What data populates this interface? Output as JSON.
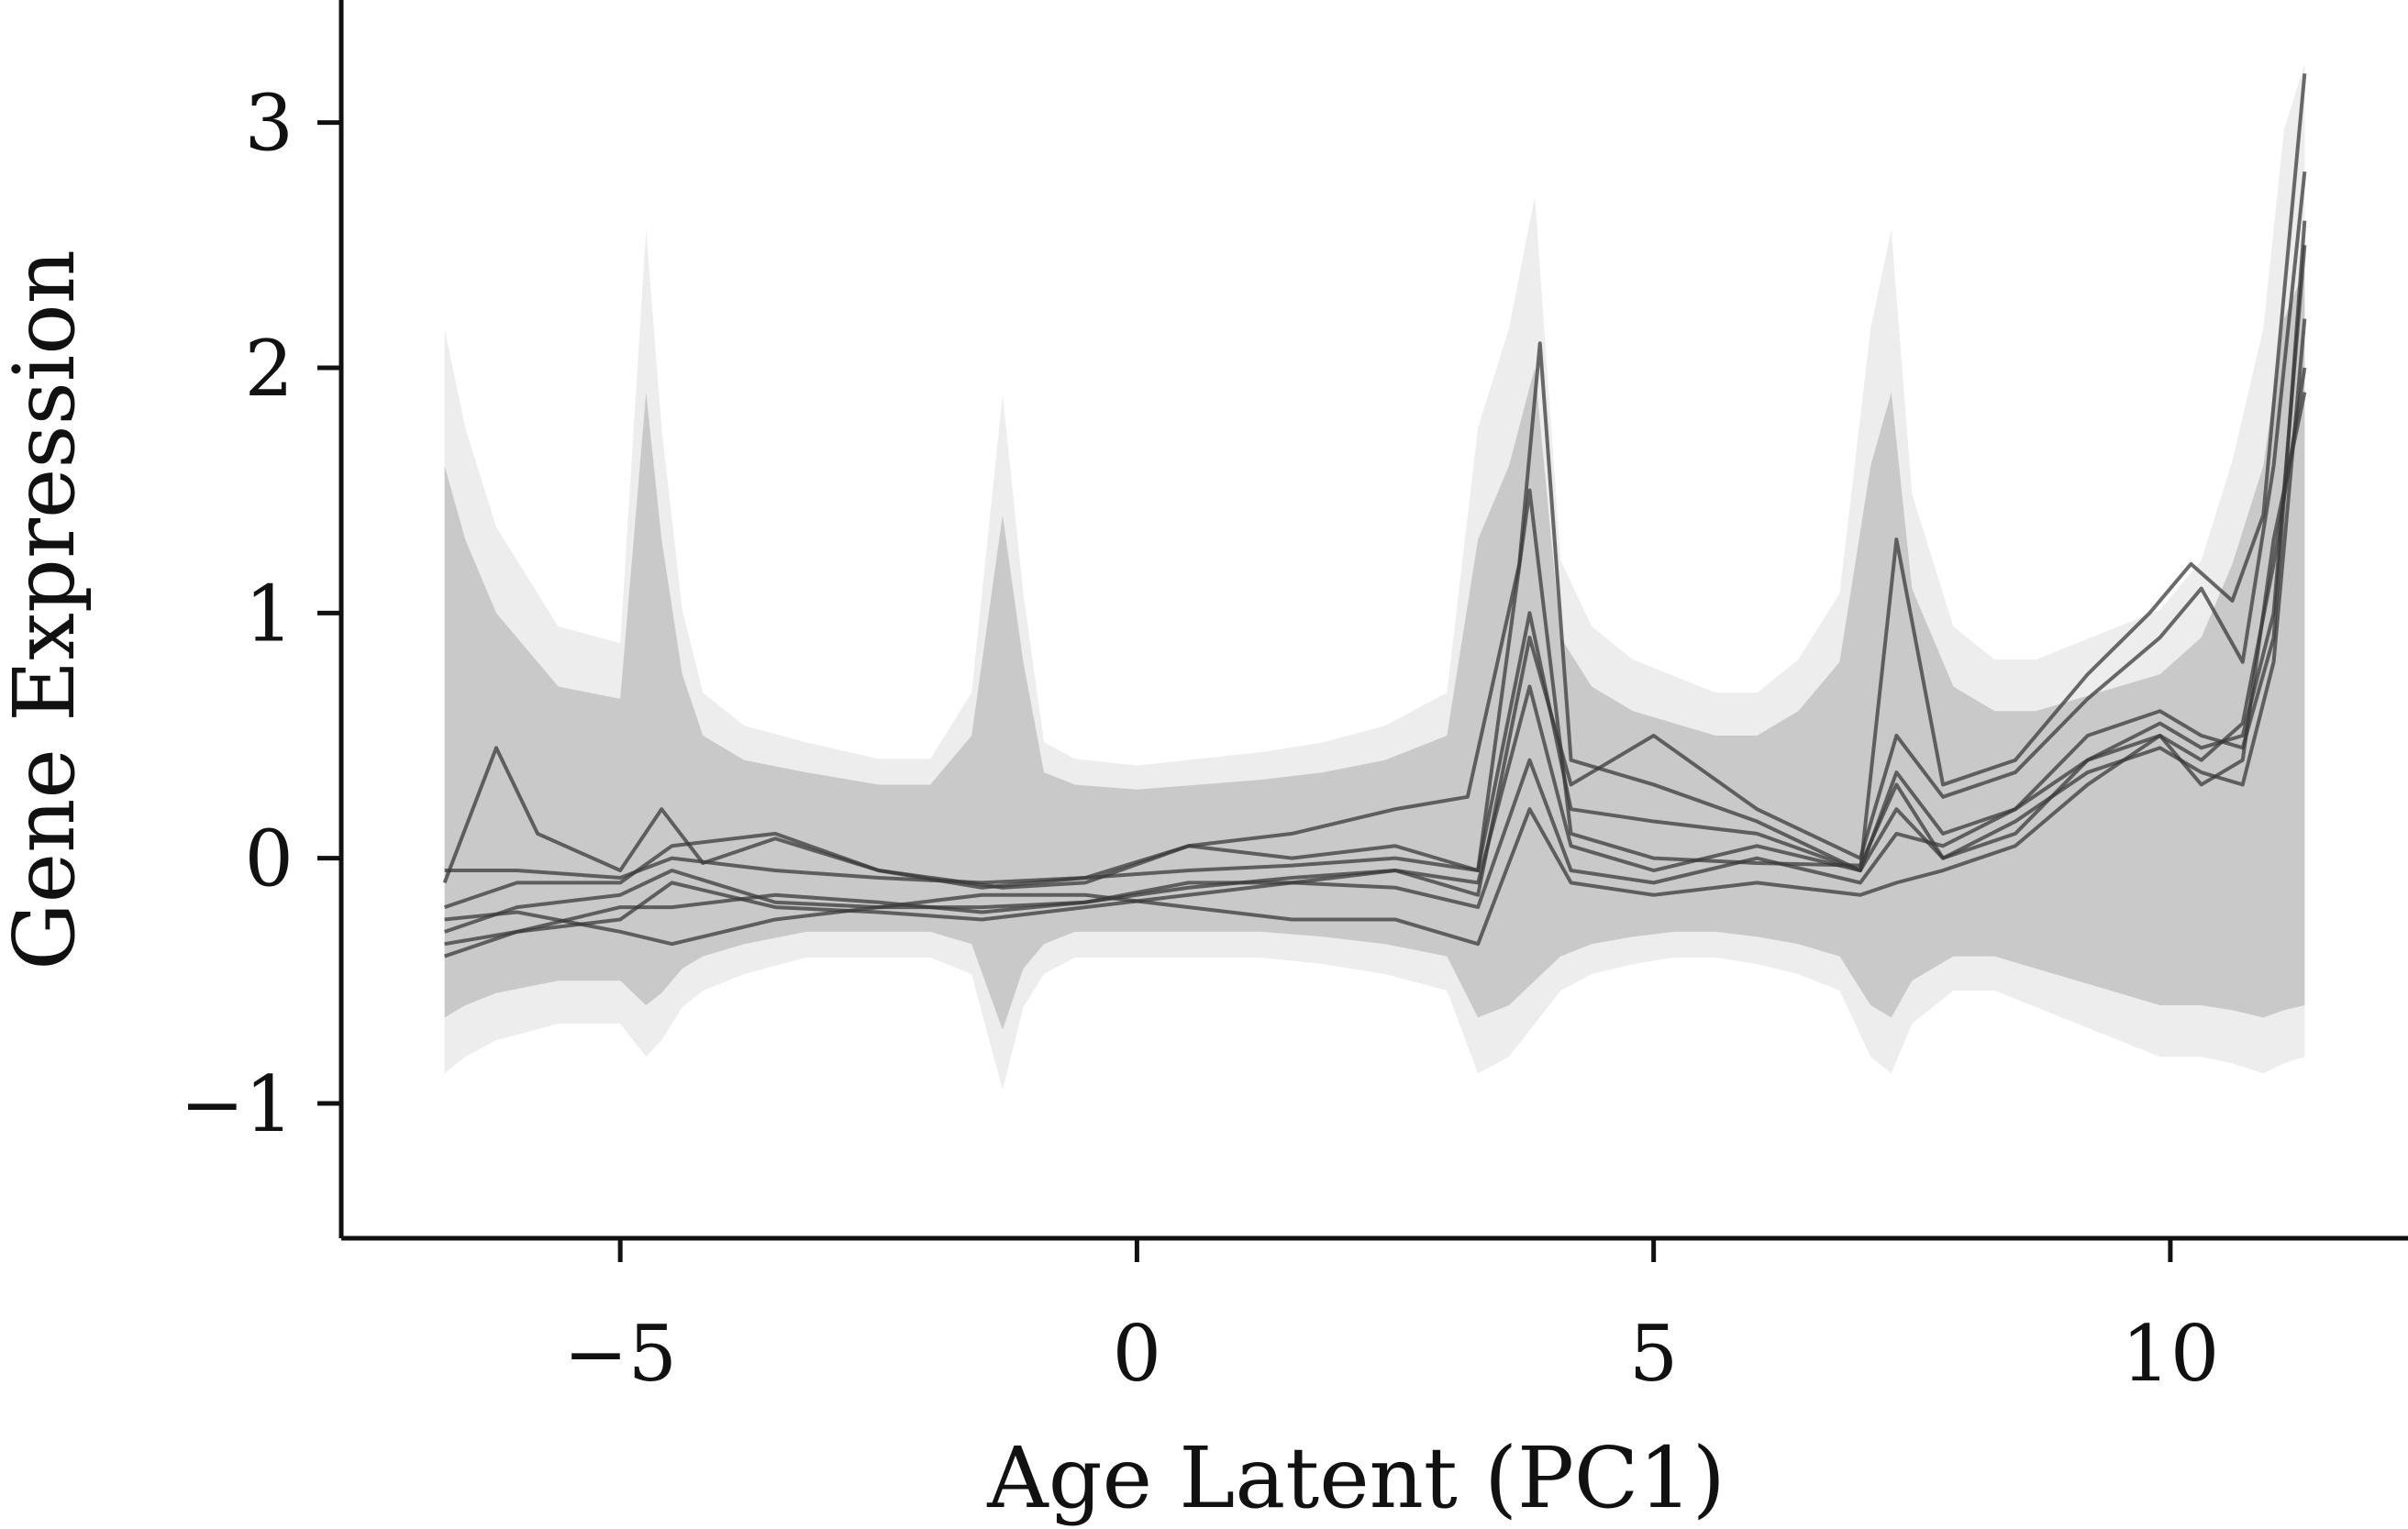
{
  "chart_data": {
    "type": "line",
    "title": "",
    "xlabel": "Age Latent (PC1)",
    "ylabel": "Gene Expression",
    "xlim": [
      -7.7,
      12.3
    ],
    "ylim": [
      -1.55,
      3.5
    ],
    "xticks": [
      {
        "value": -5,
        "label": "−5"
      },
      {
        "value": 0,
        "label": "0"
      },
      {
        "value": 5,
        "label": "5"
      },
      {
        "value": 10,
        "label": "10"
      }
    ],
    "yticks": [
      {
        "value": -1,
        "label": "−1"
      },
      {
        "value": 0,
        "label": "0"
      },
      {
        "value": 1,
        "label": "1"
      },
      {
        "value": 2,
        "label": "2"
      },
      {
        "value": 3,
        "label": "3"
      }
    ],
    "grid": false,
    "legend": "none",
    "colors": {
      "band": "#c9c9c9",
      "band_light": "#ededed",
      "lines": "#3a3a3a"
    },
    "band": {
      "x": [
        -6.7,
        -6.5,
        -6.2,
        -5.6,
        -5.0,
        -4.75,
        -4.6,
        -4.4,
        -4.2,
        -3.8,
        -3.2,
        -2.5,
        -2.0,
        -1.6,
        -1.3,
        -1.1,
        -0.9,
        -0.6,
        0.0,
        0.6,
        1.2,
        1.8,
        2.4,
        3.0,
        3.3,
        3.6,
        3.85,
        4.1,
        4.4,
        4.8,
        5.2,
        5.6,
        6.0,
        6.4,
        6.8,
        7.1,
        7.3,
        7.5,
        7.9,
        8.3,
        8.7,
        9.1,
        9.5,
        9.9,
        10.3,
        10.6,
        10.9,
        11.1,
        11.3
      ],
      "upper": [
        1.6,
        1.3,
        1.0,
        0.7,
        0.65,
        1.9,
        1.3,
        0.75,
        0.5,
        0.4,
        0.35,
        0.3,
        0.3,
        0.5,
        1.4,
        0.8,
        0.35,
        0.3,
        0.28,
        0.3,
        0.32,
        0.35,
        0.4,
        0.5,
        1.3,
        1.6,
        2.0,
        0.9,
        0.7,
        0.6,
        0.55,
        0.5,
        0.5,
        0.6,
        0.8,
        1.6,
        1.9,
        1.1,
        0.7,
        0.6,
        0.6,
        0.65,
        0.7,
        0.75,
        0.9,
        1.2,
        1.6,
        2.2,
        2.4
      ],
      "lower": [
        -0.65,
        -0.6,
        -0.55,
        -0.5,
        -0.5,
        -0.6,
        -0.55,
        -0.45,
        -0.4,
        -0.35,
        -0.3,
        -0.3,
        -0.3,
        -0.35,
        -0.7,
        -0.45,
        -0.35,
        -0.3,
        -0.3,
        -0.3,
        -0.3,
        -0.32,
        -0.35,
        -0.4,
        -0.65,
        -0.6,
        -0.5,
        -0.4,
        -0.35,
        -0.32,
        -0.3,
        -0.3,
        -0.32,
        -0.35,
        -0.4,
        -0.6,
        -0.65,
        -0.5,
        -0.4,
        -0.4,
        -0.45,
        -0.5,
        -0.55,
        -0.6,
        -0.6,
        -0.62,
        -0.65,
        -0.62,
        -0.6
      ]
    },
    "series": [
      {
        "x": [
          -6.7,
          -6.2,
          -5.8,
          -5.0,
          -4.6,
          -4.2,
          -3.5,
          -2.5,
          -1.3,
          -0.5,
          0.5,
          1.5,
          2.5,
          3.2,
          3.7,
          3.9,
          4.2,
          5.0,
          6.0,
          7.0,
          7.35,
          7.8,
          8.5,
          9.2,
          9.8,
          10.2,
          10.6,
          10.9,
          11.3
        ],
        "y": [
          -0.1,
          0.45,
          0.1,
          -0.05,
          0.2,
          -0.02,
          0.08,
          -0.05,
          -0.12,
          -0.1,
          0.05,
          0.1,
          0.2,
          0.25,
          1.2,
          2.1,
          0.4,
          0.3,
          0.15,
          -0.05,
          1.3,
          0.3,
          0.4,
          0.75,
          1.0,
          1.2,
          1.05,
          1.4,
          3.2
        ]
      },
      {
        "x": [
          -6.7,
          -6.0,
          -5.0,
          -4.5,
          -3.5,
          -2.5,
          -1.5,
          -0.5,
          0.5,
          1.5,
          2.5,
          3.3,
          3.8,
          4.2,
          5.0,
          6.0,
          7.0,
          7.35,
          7.8,
          8.5,
          9.2,
          9.9,
          10.3,
          10.7,
          11.0,
          11.3
        ],
        "y": [
          -0.4,
          -0.3,
          -0.25,
          -0.1,
          -0.2,
          -0.22,
          -0.25,
          -0.2,
          -0.15,
          -0.1,
          -0.05,
          -0.15,
          0.9,
          0.3,
          0.5,
          0.2,
          0.0,
          0.5,
          0.25,
          0.35,
          0.65,
          0.9,
          1.1,
          0.8,
          1.6,
          2.8
        ]
      },
      {
        "x": [
          -6.7,
          -6.0,
          -5.0,
          -4.5,
          -3.5,
          -2.5,
          -1.5,
          -0.5,
          0.5,
          1.5,
          2.5,
          3.3,
          3.8,
          4.2,
          5.0,
          6.0,
          7.0,
          7.35,
          7.8,
          8.5,
          9.2,
          9.9,
          10.3,
          10.7,
          11.0,
          11.3
        ],
        "y": [
          -0.05,
          -0.05,
          -0.08,
          0.0,
          -0.05,
          -0.08,
          -0.1,
          -0.08,
          -0.05,
          -0.03,
          0.0,
          -0.05,
          1.5,
          0.1,
          0.0,
          -0.02,
          -0.03,
          0.3,
          0.0,
          0.1,
          0.4,
          0.55,
          0.45,
          0.5,
          1.0,
          2.5
        ]
      },
      {
        "x": [
          -6.7,
          -6.0,
          -5.0,
          -4.5,
          -3.5,
          -2.5,
          -1.5,
          -0.5,
          0.5,
          1.5,
          2.5,
          3.3,
          3.8,
          4.2,
          5.0,
          6.0,
          7.0,
          7.35,
          7.8,
          8.5,
          9.2,
          9.9,
          10.3,
          10.7,
          11.0,
          11.3
        ],
        "y": [
          -0.3,
          -0.2,
          -0.15,
          -0.05,
          -0.18,
          -0.2,
          -0.2,
          -0.18,
          -0.12,
          -0.08,
          -0.05,
          -0.1,
          0.7,
          0.05,
          -0.05,
          0.05,
          -0.05,
          0.2,
          0.0,
          0.15,
          0.35,
          0.45,
          0.35,
          0.3,
          0.8,
          2.2
        ]
      },
      {
        "x": [
          -6.7,
          -6.0,
          -5.0,
          -4.5,
          -3.5,
          -2.5,
          -1.5,
          -0.5,
          0.5,
          1.5,
          2.5,
          3.3,
          3.8,
          4.2,
          5.0,
          6.0,
          7.0,
          7.35,
          7.8,
          8.5,
          9.2,
          9.9,
          10.3,
          10.7,
          11.0,
          11.3
        ],
        "y": [
          -0.25,
          -0.22,
          -0.3,
          -0.35,
          -0.25,
          -0.2,
          -0.15,
          -0.15,
          -0.2,
          -0.25,
          -0.25,
          -0.35,
          0.2,
          -0.1,
          -0.15,
          -0.1,
          -0.15,
          -0.1,
          -0.05,
          0.05,
          0.3,
          0.5,
          0.4,
          0.55,
          1.2,
          2.0
        ]
      },
      {
        "x": [
          -6.7,
          -6.0,
          -5.0,
          -4.5,
          -3.5,
          -2.5,
          -1.5,
          -0.5,
          0.5,
          1.5,
          2.5,
          3.3,
          3.8,
          4.2,
          5.0,
          6.0,
          7.0,
          7.35,
          7.8,
          8.5,
          9.2,
          9.9,
          10.3,
          10.7,
          11.0,
          11.3
        ],
        "y": [
          -0.2,
          -0.1,
          -0.1,
          0.05,
          0.1,
          -0.05,
          -0.12,
          -0.08,
          0.05,
          0.0,
          0.05,
          -0.05,
          1.0,
          0.2,
          0.15,
          0.1,
          -0.05,
          0.35,
          0.1,
          0.2,
          0.5,
          0.6,
          0.5,
          0.45,
          0.9,
          2.6
        ]
      },
      {
        "x": [
          -6.7,
          -6.0,
          -5.0,
          -4.5,
          -3.5,
          -2.5,
          -1.5,
          -0.5,
          0.5,
          1.5,
          2.5,
          3.3,
          3.8,
          4.2,
          5.0,
          6.0,
          7.0,
          7.35,
          7.8,
          8.5,
          9.2,
          9.9,
          10.3,
          10.7,
          11.0,
          11.3
        ],
        "y": [
          -0.35,
          -0.3,
          -0.2,
          -0.2,
          -0.15,
          -0.18,
          -0.22,
          -0.18,
          -0.1,
          -0.1,
          -0.12,
          -0.2,
          0.4,
          -0.05,
          -0.1,
          0.0,
          -0.1,
          0.1,
          0.05,
          0.2,
          0.4,
          0.5,
          0.3,
          0.4,
          1.3,
          1.9
        ]
      }
    ]
  }
}
